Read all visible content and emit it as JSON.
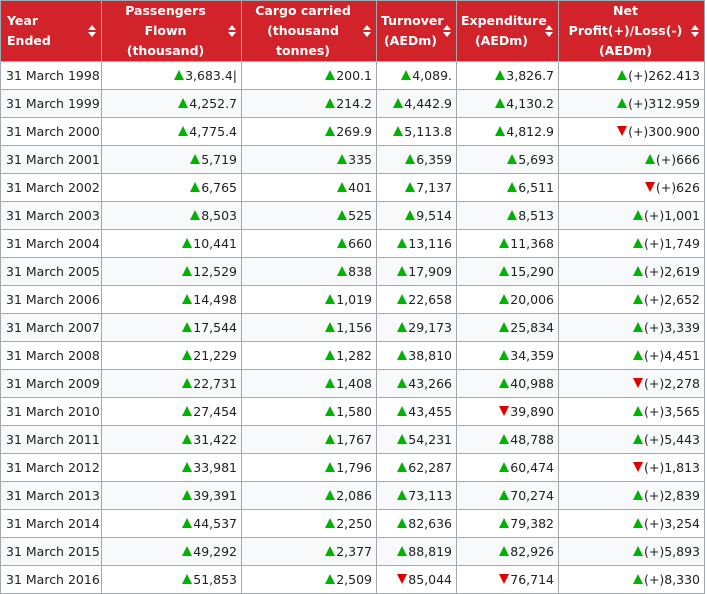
{
  "colors": {
    "header_bg": "#d2232a",
    "up": "#00b300",
    "down": "#e00000"
  },
  "headers": [
    [
      "Year Ended"
    ],
    [
      "Passengers Flown",
      "(thousand)"
    ],
    [
      "Cargo carried",
      "(thousand tonnes)"
    ],
    [
      "Turnover",
      "(AEDm)"
    ],
    [
      "Expenditure",
      "(AEDm)"
    ],
    [
      "Net Profit(+)/Loss(-)",
      "(AEDm)"
    ]
  ],
  "rows": [
    {
      "year": "31 March 1998",
      "cells": [
        {
          "v": "3,683.4|",
          "d": "up"
        },
        {
          "v": "200.1",
          "d": "up"
        },
        {
          "v": "4,089.",
          "d": "up"
        },
        {
          "v": "3,826.7",
          "d": "up"
        },
        {
          "v": "(+)262.413",
          "d": "up"
        }
      ]
    },
    {
      "year": "31 March 1999",
      "cells": [
        {
          "v": "4,252.7",
          "d": "up"
        },
        {
          "v": "214.2",
          "d": "up"
        },
        {
          "v": "4,442.9",
          "d": "up"
        },
        {
          "v": "4,130.2",
          "d": "up"
        },
        {
          "v": "(+)312.959",
          "d": "up"
        }
      ]
    },
    {
      "year": "31 March 2000",
      "cells": [
        {
          "v": "4,775.4",
          "d": "up"
        },
        {
          "v": "269.9",
          "d": "up"
        },
        {
          "v": "5,113.8",
          "d": "up"
        },
        {
          "v": "4,812.9",
          "d": "up"
        },
        {
          "v": "(+)300.900",
          "d": "down"
        }
      ]
    },
    {
      "year": "31 March 2001",
      "cells": [
        {
          "v": "5,719",
          "d": "up"
        },
        {
          "v": "335",
          "d": "up"
        },
        {
          "v": "6,359",
          "d": "up"
        },
        {
          "v": "5,693",
          "d": "up"
        },
        {
          "v": "(+)666",
          "d": "up"
        }
      ]
    },
    {
      "year": "31 March 2002",
      "cells": [
        {
          "v": "6,765",
          "d": "up"
        },
        {
          "v": "401",
          "d": "up"
        },
        {
          "v": "7,137",
          "d": "up"
        },
        {
          "v": "6,511",
          "d": "up"
        },
        {
          "v": "(+)626",
          "d": "down"
        }
      ]
    },
    {
      "year": "31 March 2003",
      "cells": [
        {
          "v": "8,503",
          "d": "up"
        },
        {
          "v": "525",
          "d": "up"
        },
        {
          "v": "9,514",
          "d": "up"
        },
        {
          "v": "8,513",
          "d": "up"
        },
        {
          "v": "(+)1,001",
          "d": "up"
        }
      ]
    },
    {
      "year": "31 March 2004",
      "cells": [
        {
          "v": "10,441",
          "d": "up"
        },
        {
          "v": "660",
          "d": "up"
        },
        {
          "v": "13,116",
          "d": "up"
        },
        {
          "v": "11,368",
          "d": "up"
        },
        {
          "v": "(+)1,749",
          "d": "up"
        }
      ]
    },
    {
      "year": "31 March 2005",
      "cells": [
        {
          "v": "12,529",
          "d": "up"
        },
        {
          "v": "838",
          "d": "up"
        },
        {
          "v": "17,909",
          "d": "up"
        },
        {
          "v": "15,290",
          "d": "up"
        },
        {
          "v": "(+)2,619",
          "d": "up"
        }
      ]
    },
    {
      "year": "31 March 2006",
      "cells": [
        {
          "v": "14,498",
          "d": "up"
        },
        {
          "v": "1,019",
          "d": "up"
        },
        {
          "v": "22,658",
          "d": "up"
        },
        {
          "v": "20,006",
          "d": "up"
        },
        {
          "v": "(+)2,652",
          "d": "up"
        }
      ]
    },
    {
      "year": "31 March 2007",
      "cells": [
        {
          "v": "17,544",
          "d": "up"
        },
        {
          "v": "1,156",
          "d": "up"
        },
        {
          "v": "29,173",
          "d": "up"
        },
        {
          "v": "25,834",
          "d": "up"
        },
        {
          "v": "(+)3,339",
          "d": "up"
        }
      ]
    },
    {
      "year": "31 March 2008",
      "cells": [
        {
          "v": "21,229",
          "d": "up"
        },
        {
          "v": "1,282",
          "d": "up"
        },
        {
          "v": "38,810",
          "d": "up"
        },
        {
          "v": "34,359",
          "d": "up"
        },
        {
          "v": "(+)4,451",
          "d": "up"
        }
      ]
    },
    {
      "year": "31 March 2009",
      "cells": [
        {
          "v": "22,731",
          "d": "up"
        },
        {
          "v": "1,408",
          "d": "up"
        },
        {
          "v": "43,266",
          "d": "up"
        },
        {
          "v": "40,988",
          "d": "up"
        },
        {
          "v": "(+)2,278",
          "d": "down"
        }
      ]
    },
    {
      "year": "31 March 2010",
      "cells": [
        {
          "v": "27,454",
          "d": "up"
        },
        {
          "v": "1,580",
          "d": "up"
        },
        {
          "v": "43,455",
          "d": "up"
        },
        {
          "v": "39,890",
          "d": "down"
        },
        {
          "v": "(+)3,565",
          "d": "up"
        }
      ]
    },
    {
      "year": "31 March 2011",
      "cells": [
        {
          "v": "31,422",
          "d": "up"
        },
        {
          "v": "1,767",
          "d": "up"
        },
        {
          "v": "54,231",
          "d": "up"
        },
        {
          "v": "48,788",
          "d": "up"
        },
        {
          "v": "(+)5,443",
          "d": "up"
        }
      ]
    },
    {
      "year": "31 March 2012",
      "cells": [
        {
          "v": "33,981",
          "d": "up"
        },
        {
          "v": "1,796",
          "d": "up"
        },
        {
          "v": "62,287",
          "d": "up"
        },
        {
          "v": "60,474",
          "d": "up"
        },
        {
          "v": "(+)1,813",
          "d": "down"
        }
      ]
    },
    {
      "year": "31 March 2013",
      "cells": [
        {
          "v": "39,391",
          "d": "up"
        },
        {
          "v": "2,086",
          "d": "up"
        },
        {
          "v": "73,113",
          "d": "up"
        },
        {
          "v": "70,274",
          "d": "up"
        },
        {
          "v": "(+)2,839",
          "d": "up"
        }
      ]
    },
    {
      "year": "31 March 2014",
      "cells": [
        {
          "v": "44,537",
          "d": "up"
        },
        {
          "v": "2,250",
          "d": "up"
        },
        {
          "v": "82,636",
          "d": "up"
        },
        {
          "v": "79,382",
          "d": "up"
        },
        {
          "v": "(+)3,254",
          "d": "up"
        }
      ]
    },
    {
      "year": "31 March 2015",
      "cells": [
        {
          "v": "49,292",
          "d": "up"
        },
        {
          "v": "2,377",
          "d": "up"
        },
        {
          "v": "88,819",
          "d": "up"
        },
        {
          "v": "82,926",
          "d": "up"
        },
        {
          "v": "(+)5,893",
          "d": "up"
        }
      ]
    },
    {
      "year": "31 March 2016",
      "cells": [
        {
          "v": "51,853",
          "d": "up"
        },
        {
          "v": "2,509",
          "d": "up"
        },
        {
          "v": "85,044",
          "d": "down"
        },
        {
          "v": "76,714",
          "d": "down"
        },
        {
          "v": "(+)8,330",
          "d": "up"
        }
      ]
    }
  ]
}
